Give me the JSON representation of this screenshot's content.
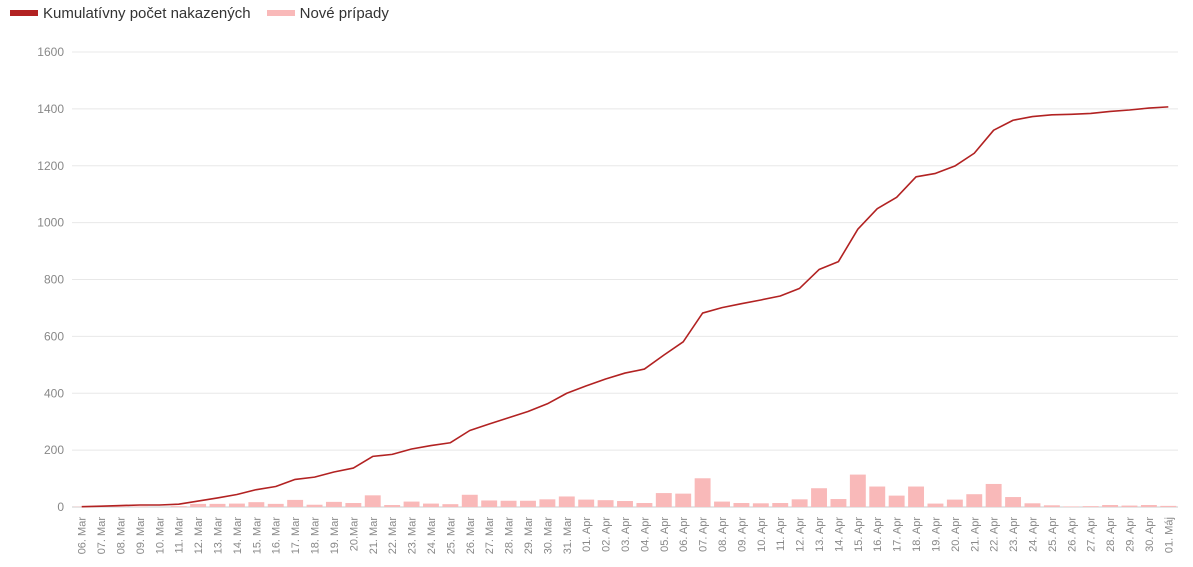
{
  "chart_data": {
    "type": "bar",
    "title": "",
    "xlabel": "",
    "ylabel": "",
    "ylim": [
      0,
      1600
    ],
    "yticks": [
      0,
      200,
      400,
      600,
      800,
      1000,
      1200,
      1400,
      1600
    ],
    "grid": true,
    "legend_position": "top-left",
    "categories": [
      "06. Mar",
      "07. Mar",
      "08. Mar",
      "09. Mar",
      "10. Mar",
      "11. Mar",
      "12. Mar",
      "13. Mar",
      "14. Mar",
      "15. Mar",
      "16. Mar",
      "17. Mar",
      "18. Mar",
      "19. Mar",
      "20.Mar",
      "21. Mar",
      "22. Mar",
      "23. Mar",
      "24. Mar",
      "25. Mar",
      "26. Mar",
      "27. Mar",
      "28. Mar",
      "29. Mar",
      "30. Mar",
      "31. Mar",
      "01. Apr",
      "02. Apr",
      "03. Apr",
      "04. Apr",
      "05. Apr",
      "06. Apr",
      "07. Apr",
      "08. Apr",
      "09. Apr",
      "10. Apr",
      "11. Apr",
      "12. Apr",
      "13. Apr",
      "14. Apr",
      "15. Apr",
      "16. Apr",
      "17. Apr",
      "18. Apr",
      "19. Apr",
      "20. Apr",
      "21. Apr",
      "22. Apr",
      "23. Apr",
      "24. Apr",
      "25. Apr",
      "26. Apr",
      "27. Apr",
      "28. Apr",
      "29. Apr",
      "30. Apr",
      "01. Máj"
    ],
    "series": [
      {
        "name": "Kumulatívny počet nakazených",
        "type": "line",
        "color": "#b22222",
        "values": [
          1,
          3,
          5,
          7,
          7,
          10,
          21,
          32,
          44,
          61,
          72,
          97,
          105,
          123,
          137,
          178,
          185,
          204,
          216,
          226,
          269,
          292,
          314,
          336,
          363,
          400,
          426,
          450,
          471,
          485,
          534,
          581,
          682,
          701,
          715,
          728,
          742,
          769,
          835,
          863,
          977,
          1049,
          1089,
          1161,
          1173,
          1199,
          1244,
          1325,
          1360,
          1373,
          1379,
          1381,
          1384,
          1391,
          1396,
          1403,
          1407
        ]
      },
      {
        "name": "Nové prípady",
        "type": "bar",
        "color": "#f9b9b9",
        "values": [
          1,
          2,
          2,
          2,
          0,
          3,
          11,
          11,
          12,
          17,
          11,
          25,
          8,
          18,
          14,
          41,
          7,
          19,
          12,
          10,
          43,
          23,
          22,
          22,
          27,
          37,
          26,
          24,
          21,
          14,
          49,
          47,
          101,
          19,
          14,
          13,
          14,
          27,
          66,
          28,
          114,
          72,
          40,
          72,
          12,
          26,
          45,
          81,
          35,
          13,
          6,
          2,
          3,
          7,
          5,
          7,
          4
        ]
      }
    ]
  }
}
